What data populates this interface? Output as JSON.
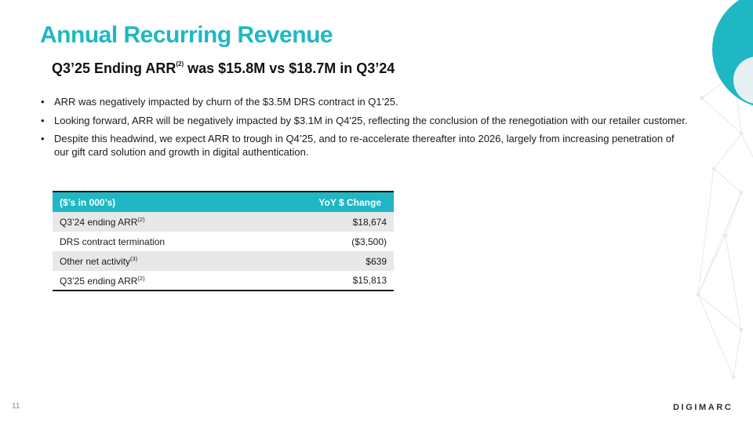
{
  "slide": {
    "title": "Annual Recurring Revenue",
    "subtitle_pre": "Q3’25 Ending ARR",
    "subtitle_sup": "(2)",
    "subtitle_post": " was $15.8M vs $18.7M in Q3’24",
    "bullets": [
      "ARR was negatively impacted by churn of the $3.5M DRS contract in Q1’25.",
      "Looking forward, ARR will be negatively impacted by $3.1M in Q4'25, reflecting the conclusion of the renegotiation with our retailer customer.",
      "Despite this headwind, we expect ARR to trough in Q4’25, and to re-accelerate thereafter into 2026, largely from increasing penetration of our gift card solution and growth in digital authentication."
    ],
    "page_number": "11",
    "logo_text": "DIGIMARC"
  },
  "table": {
    "header_label": "($’s in 000’s)",
    "header_value": "YoY $ Change",
    "rows": [
      {
        "label": "Q3’24 ending ARR",
        "sup": "(2)",
        "value": "$18,674"
      },
      {
        "label": "DRS contract termination",
        "sup": "",
        "value": "($3,500)"
      },
      {
        "label": "Other net activity",
        "sup": "(3)",
        "value": "$639"
      },
      {
        "label": "Q3’25 ending ARR",
        "sup": "(2)",
        "value": "$15,813"
      }
    ]
  },
  "colors": {
    "accent": "#20b7c4",
    "row_shade": "#e8e8e8",
    "decor_light": "#e6f0f3"
  },
  "icons": [
    "decorative-circles",
    "network-lines-graphic",
    "digimarc-logo"
  ]
}
